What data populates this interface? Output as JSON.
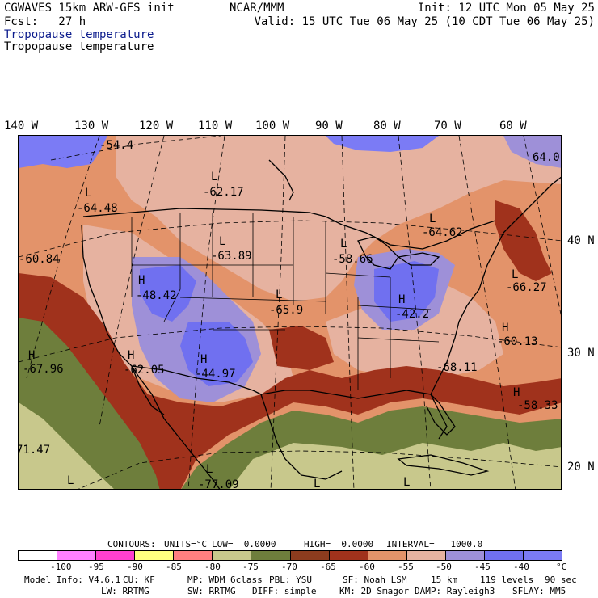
{
  "header": {
    "model_line": "CGWAVES 15km ARW-GFS init",
    "forecast_line": "Fcst:   27 h",
    "center_name": "NCAR/MMM",
    "init_line": "Init: 12 UTC Mon 05 May 25",
    "valid_line": "Valid: 15 UTC Tue 06 May 25 (10 CDT Tue 06 May 25)",
    "field_title_1": "Tropopause temperature",
    "field_title_2": "Tropopause temperature"
  },
  "axes": {
    "longitude_labels": [
      "140 W",
      "130 W",
      "120 W",
      "110 W",
      "100 W",
      "90 W",
      "80 W",
      "70 W",
      "60 W"
    ],
    "latitude_labels": [
      "40 N",
      "30 N",
      "20 N"
    ]
  },
  "map_labels": [
    {
      "text": "-54.4"
    },
    {
      "text": "L"
    },
    {
      "text": "-62.17"
    },
    {
      "text": "L"
    },
    {
      "text": "-64.48"
    },
    {
      "text": "L"
    },
    {
      "text": "-63.89"
    },
    {
      "text": "L"
    },
    {
      "text": "-58.66"
    },
    {
      "text": "L"
    },
    {
      "text": "-64.62"
    },
    {
      "text": "-60.84"
    },
    {
      "text": "H"
    },
    {
      "text": "-48.42"
    },
    {
      "text": "L"
    },
    {
      "text": "-65.9"
    },
    {
      "text": "H"
    },
    {
      "text": "-42.2"
    },
    {
      "text": "L"
    },
    {
      "text": "-66.27"
    },
    {
      "text": "H"
    },
    {
      "text": "-60.13"
    },
    {
      "text": "H"
    },
    {
      "text": "-67.96"
    },
    {
      "text": "H"
    },
    {
      "text": "-62.05"
    },
    {
      "text": "H"
    },
    {
      "text": "-44.97"
    },
    {
      "text": "-68.11"
    },
    {
      "text": "H"
    },
    {
      "text": "-58.33"
    },
    {
      "text": "71.47"
    },
    {
      "text": "-77.09"
    },
    {
      "text": "L"
    },
    {
      "text": "L"
    },
    {
      "text": "L"
    },
    {
      "text": "L"
    },
    {
      "text": "64.0"
    }
  ],
  "contours_info": {
    "contours": "CONTOURS:",
    "units": "UNITS=°C",
    "low": "LOW=  0.0000",
    "high": "HIGH=  0.0000",
    "interval": "INTERVAL=   1000.0"
  },
  "legend": {
    "colors": [
      "#ffffff",
      "#ff80ff",
      "#ff40d0",
      "#ffff80",
      "#ff8080",
      "#c8c88c",
      "#6e7e3c",
      "#8c3c1e",
      "#a0321c",
      "#e3936a",
      "#e6b2a0",
      "#9e90d8",
      "#7070f0",
      "#7b7bf5"
    ],
    "ticks": [
      "-100",
      "-95",
      "-90",
      "-85",
      "-80",
      "-75",
      "-70",
      "-65",
      "-60",
      "-55",
      "-50",
      "-45",
      "-40",
      "°C"
    ]
  },
  "footer": {
    "line1": [
      "Model Info: V4.6.1",
      "CU: KF",
      "MP: WDM 6class",
      "PBL: YSU",
      "SF: Noah LSM",
      "15 km",
      "119 levels",
      "90 sec"
    ],
    "line2": [
      "LW: RRTMG",
      "SW: RRTMG",
      "DIFF: simple",
      "KM: 2D Smagor",
      "DAMP: Rayleigh3",
      "SFLAY: MM5"
    ]
  }
}
